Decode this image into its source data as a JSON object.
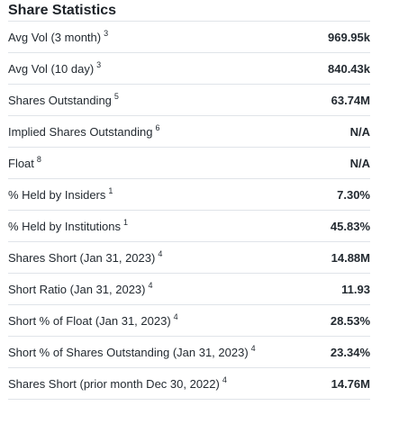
{
  "section": {
    "title": "Share Statistics"
  },
  "rows": [
    {
      "label": "Avg Vol (3 month)",
      "note": "3",
      "value": "969.95k"
    },
    {
      "label": "Avg Vol (10 day)",
      "note": "3",
      "value": "840.43k"
    },
    {
      "label": "Shares Outstanding",
      "note": "5",
      "value": "63.74M"
    },
    {
      "label": "Implied Shares Outstanding",
      "note": "6",
      "value": "N/A"
    },
    {
      "label": "Float",
      "note": "8",
      "value": "N/A"
    },
    {
      "label": "% Held by Insiders",
      "note": "1",
      "value": "7.30%"
    },
    {
      "label": "% Held by Institutions",
      "note": "1",
      "value": "45.83%"
    },
    {
      "label": "Shares Short (Jan 31, 2023)",
      "note": "4",
      "value": "14.88M"
    },
    {
      "label": "Short Ratio (Jan 31, 2023)",
      "note": "4",
      "value": "11.93"
    },
    {
      "label": "Short % of Float (Jan 31, 2023)",
      "note": "4",
      "value": "28.53%"
    },
    {
      "label": "Short % of Shares Outstanding (Jan 31, 2023)",
      "note": "4",
      "value": "23.34%"
    },
    {
      "label": "Shares Short (prior month Dec 30, 2022)",
      "note": "4",
      "value": "14.76M"
    }
  ]
}
